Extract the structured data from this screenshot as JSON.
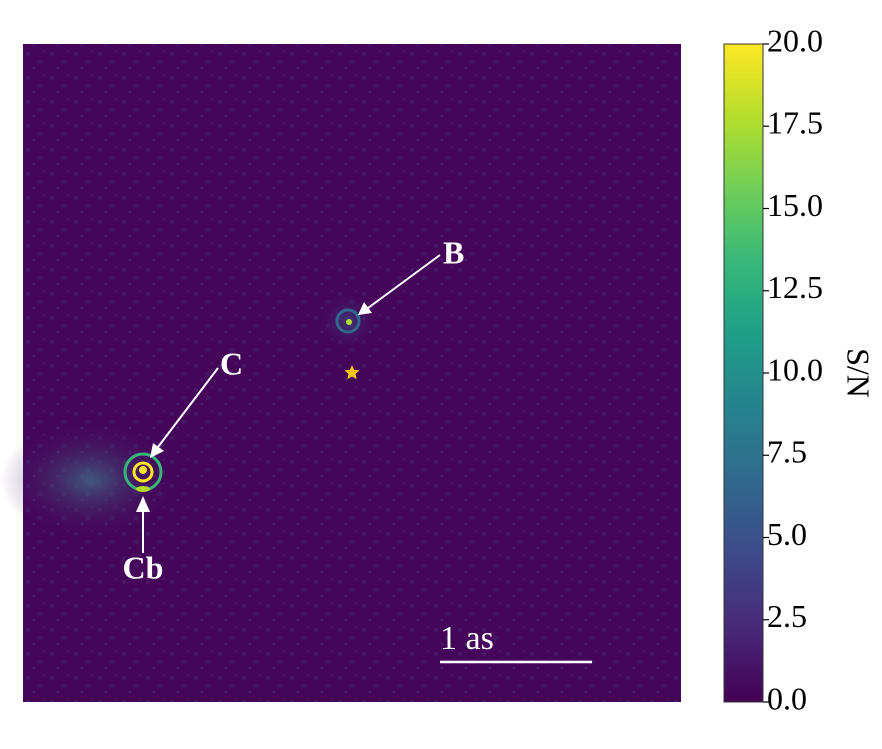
{
  "chart_data": {
    "type": "image",
    "colorbar": {
      "label": "S/N",
      "clim": [
        0,
        20
      ],
      "ticks": [
        {
          "value": 0,
          "label": "0.0"
        },
        2.5,
        {
          "value": 5,
          "label": "5.0"
        },
        7.5,
        {
          "value": 10,
          "label": "10.0"
        },
        12.5,
        {
          "value": 15,
          "label": "15.0"
        },
        17.5,
        {
          "value": 20,
          "label": "20.0"
        }
      ],
      "colormap": [
        "#440154",
        "#482878",
        "#3e4a89",
        "#31688e",
        "#26828e",
        "#1f9e89",
        "#35b779",
        "#6ece58",
        "#b5de2b",
        "#fde725"
      ]
    },
    "annotations": [
      "B",
      "C",
      "Cb"
    ],
    "scale_bar": "1 as"
  }
}
